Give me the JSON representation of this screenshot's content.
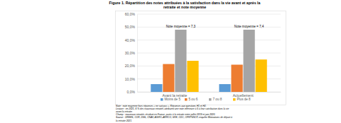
{
  "chart_data": {
    "type": "bar",
    "title": [
      "Figure 1. Répartition des notes attribuées à la satisfaction dans la vie avant et après la",
      "retraite et note moyenne"
    ],
    "categories": [
      "Avant la retraite",
      "Actuellement"
    ],
    "series": [
      {
        "name": "Moins de 5",
        "color": "#5b9bd5",
        "values": [
          6,
          6
        ]
      },
      {
        "name": "5 ou 6",
        "color": "#ed7d31",
        "values": [
          21.5,
          21
        ]
      },
      {
        "name": "7 ou 8",
        "color": "#a5a5a5",
        "values": [
          48,
          48
        ]
      },
      {
        "name": "Plus de 8",
        "color": "#ffc000",
        "values": [
          24,
          25
        ]
      }
    ],
    "ylim": [
      0,
      60
    ],
    "yticks": [
      {
        "value": 0,
        "label": "0,0%"
      },
      {
        "value": 10,
        "label": "10,0%"
      },
      {
        "value": 20,
        "label": "20,0%"
      },
      {
        "value": 30,
        "label": "30,0%"
      },
      {
        "value": 40,
        "label": "40,0%"
      },
      {
        "value": 50,
        "label": "50,0%"
      },
      {
        "value": 60,
        "label": "60,0%"
      }
    ],
    "grid": true,
    "legend": "bottom",
    "annotations": [
      "Note moyenne = 7,3",
      "Note moyenne = 7,4"
    ],
    "notes": [
      "Note : note moyenne hors réponses « ne sait pas ». Réponses aux questions H1 et H2.",
      "Lecture : en 2021, 6 % des nouveaux retraités attribuent une note inférieure à 5 à leur satisfaction dans la vie",
      "avant la retraite.",
      "Champ : nouveaux retraités résidant en France, partis à la retraite entre juillet 2019 et juin 2020.",
      "Source : DREES, COR, DSS, CNAV, AGIRC-ARRCO, SRE, CDC, CFRPSNCF, enquête Motivations de départ à",
      "la retraite 2021."
    ]
  }
}
